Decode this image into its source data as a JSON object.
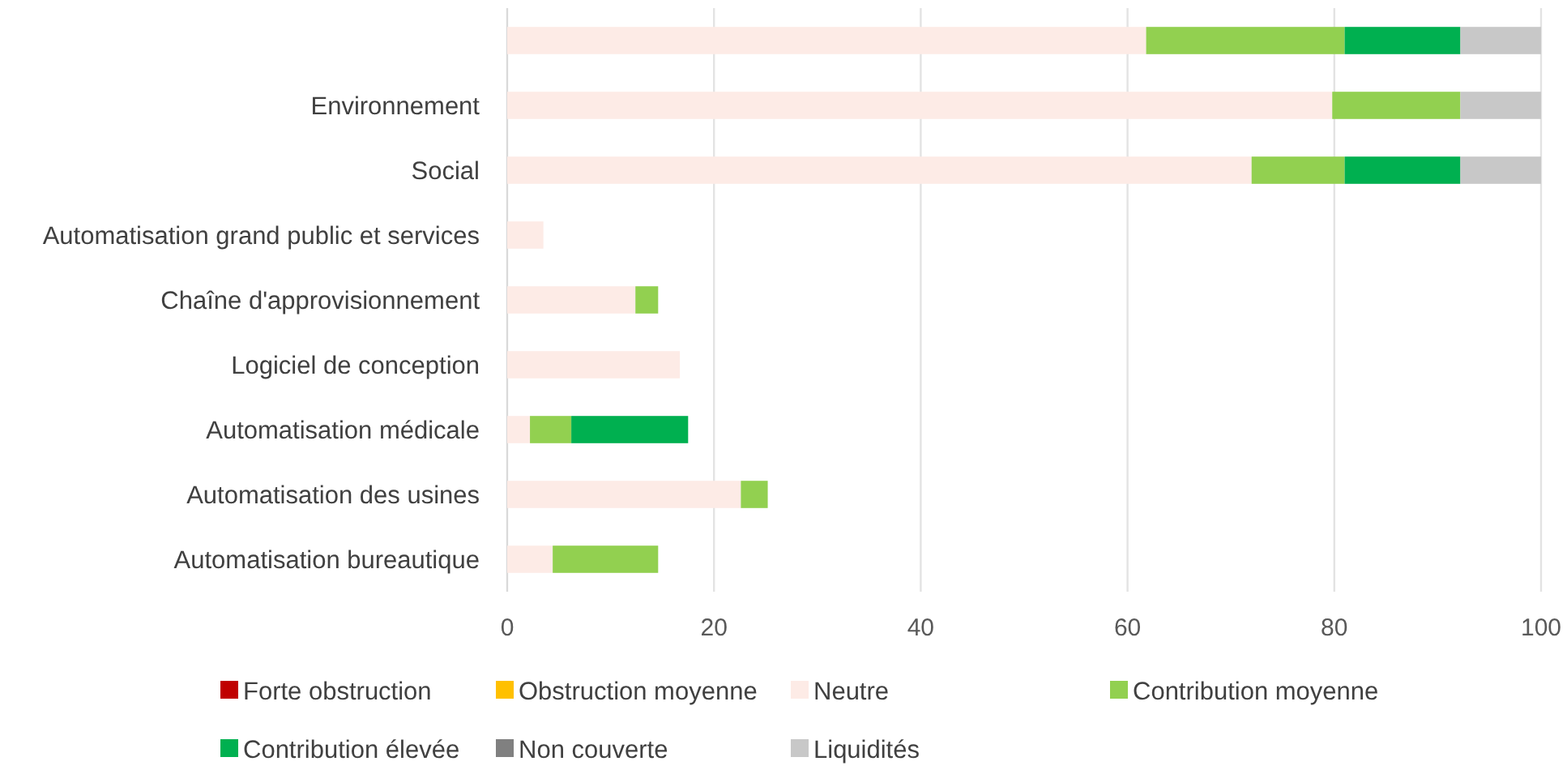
{
  "chart_data": {
    "type": "bar",
    "orientation": "horizontal",
    "stacked": true,
    "categories": [
      null,
      "Environnement",
      "Social",
      "Automatisation grand public et services",
      "Chaîne d'approvisionnement",
      "Logiciel de conception",
      "Automatisation médicale",
      "Automatisation des usines",
      "Automatisation bureautique"
    ],
    "series": [
      {
        "name": "Forte obstruction",
        "color": "#c00000",
        "values": [
          0,
          0,
          0,
          0,
          0,
          0,
          0,
          0,
          0
        ]
      },
      {
        "name": "Obstruction moyenne",
        "color": "#ffc000",
        "values": [
          0,
          0,
          0,
          0,
          0,
          0,
          0,
          0,
          0
        ]
      },
      {
        "name": "Neutre",
        "color": "#fdebe6",
        "values": [
          61.8,
          79.8,
          72,
          3.5,
          12.4,
          16.7,
          2.2,
          22.6,
          4.4
        ]
      },
      {
        "name": "Contribution moyenne",
        "color": "#92d050",
        "values": [
          19.2,
          12.4,
          9,
          0,
          2.2,
          0,
          4,
          2.6,
          10.2
        ]
      },
      {
        "name": "Contribution élevée",
        "color": "#00b050",
        "values": [
          11.2,
          0,
          11.2,
          0,
          0,
          0,
          11.3,
          0,
          0
        ]
      },
      {
        "name": "Non couverte",
        "color": "#808080",
        "values": [
          0,
          0,
          0,
          0,
          0,
          0,
          0,
          0,
          0
        ]
      },
      {
        "name": "Liquidités",
        "color": "#c8c8c8",
        "values": [
          7.8,
          7.8,
          7.8,
          0,
          0,
          0,
          0,
          0,
          0
        ]
      }
    ],
    "xlim": [
      0,
      100
    ],
    "xticks": [
      0,
      20,
      40,
      60,
      80,
      100
    ],
    "grid": "x",
    "legend": "bottom"
  }
}
